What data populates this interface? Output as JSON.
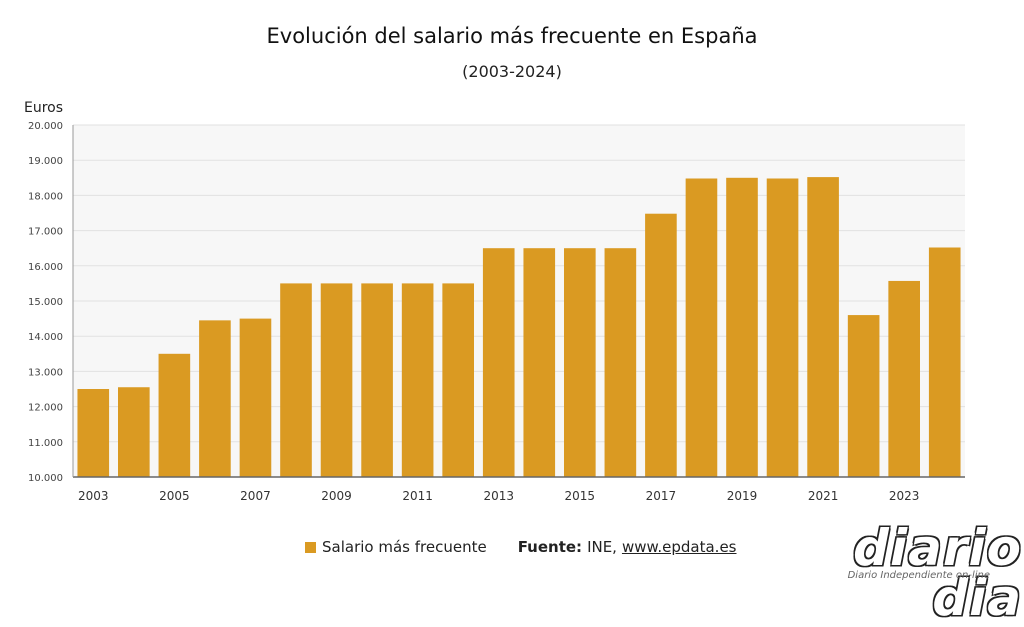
{
  "title": "Evolución del salario más frecuente en España",
  "subtitle": "(2003-2024)",
  "legend": {
    "series_label": "Salario más frecuente",
    "source_label": "Fuente:",
    "source_text": "INE,",
    "source_link": "www.epdata.es"
  },
  "logo": {
    "word": "diario dia",
    "tagline": "Diario Independiente on-line"
  },
  "colors": {
    "bar": "#DA9A22",
    "plot_background": "#F7F7F7",
    "grid": "#E2E2E2"
  },
  "chart_data": {
    "type": "bar",
    "title": "Evolución del salario más frecuente en España",
    "subtitle": "(2003-2024)",
    "ylabel": "Euros",
    "xlabel": "",
    "ylim": [
      10000,
      20000
    ],
    "yticks": [
      "10.000",
      "11.000",
      "12.000",
      "13.000",
      "14.000",
      "15.000",
      "16.000",
      "17.000",
      "18.000",
      "19.000",
      "20.000"
    ],
    "ytick_values": [
      10000,
      11000,
      12000,
      13000,
      14000,
      15000,
      16000,
      17000,
      18000,
      19000,
      20000
    ],
    "xtick_labels": [
      "2003",
      "2005",
      "2007",
      "2009",
      "2011",
      "2013",
      "2015",
      "2017",
      "2019",
      "2021",
      "2023"
    ],
    "grid": true,
    "legend_position": "bottom",
    "categories": [
      "2003",
      "2004",
      "2005",
      "2006",
      "2007",
      "2008",
      "2009",
      "2010",
      "2011",
      "2012",
      "2013",
      "2014",
      "2015",
      "2016",
      "2017",
      "2018",
      "2019",
      "2020",
      "2021",
      "2022",
      "2023",
      "2024"
    ],
    "series": [
      {
        "name": "Salario más frecuente",
        "values": [
          12500,
          12550,
          13500,
          14450,
          14500,
          15500,
          15500,
          15500,
          15500,
          15500,
          16500,
          16500,
          16500,
          16500,
          17480,
          18480,
          18500,
          18480,
          18520,
          14600,
          15570,
          16520
        ]
      }
    ]
  }
}
